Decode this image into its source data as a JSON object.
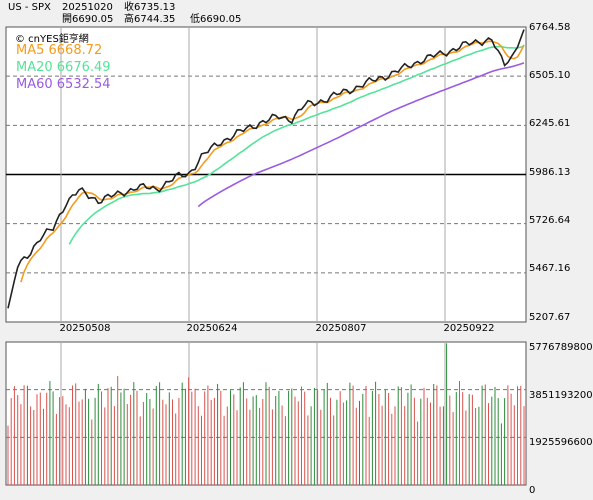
{
  "header": {
    "symbol": "US - SPX",
    "date": "20251020",
    "close": "收6735.13",
    "open": "開6690.05",
    "high": "高6744.35",
    "low": "低6690.05"
  },
  "brand": "© cnYES鉅亨網",
  "legend": [
    {
      "label": "MA5 6668.72",
      "color": "#f39c1e"
    },
    {
      "label": "MA20 6676.49",
      "color": "#55e39a"
    },
    {
      "label": "MA60 6532.54",
      "color": "#9a5be0"
    }
  ],
  "colors": {
    "price": "#222222",
    "ma5": "#f39c1e",
    "ma20": "#55e39a",
    "ma60": "#9a5be0",
    "vol_up": "#d9534f",
    "vol_down": "#2e8b3a",
    "reference": "#000000"
  },
  "chart_data": [
    {
      "type": "line",
      "x_ticks": [
        "20250508",
        "20250624",
        "20250807",
        "20250922"
      ],
      "y_ticks": [
        "6764.58",
        "6505.10",
        "6245.61",
        "5986.13",
        "5726.64",
        "5467.16",
        "5207.67"
      ],
      "ylim": [
        5207.67,
        6764.58
      ],
      "reference_line": 5986.13,
      "series": [
        {
          "name": "MA5",
          "last": 6668.72
        },
        {
          "name": "MA20",
          "last": 6676.49
        },
        {
          "name": "MA60",
          "last": 6532.54
        }
      ],
      "price_anchors": [
        [
          0,
          5280
        ],
        [
          3,
          5500
        ],
        [
          6,
          5560
        ],
        [
          10,
          5650
        ],
        [
          14,
          5700
        ],
        [
          18,
          5840
        ],
        [
          22,
          5900
        ],
        [
          28,
          5850
        ],
        [
          34,
          5880
        ],
        [
          40,
          5920
        ],
        [
          46,
          5910
        ],
        [
          52,
          5970
        ],
        [
          56,
          5990
        ],
        [
          60,
          6080
        ],
        [
          66,
          6160
        ],
        [
          72,
          6210
        ],
        [
          78,
          6260
        ],
        [
          84,
          6290
        ],
        [
          88,
          6280
        ],
        [
          92,
          6350
        ],
        [
          98,
          6380
        ],
        [
          104,
          6420
        ],
        [
          110,
          6460
        ],
        [
          116,
          6500
        ],
        [
          122,
          6540
        ],
        [
          128,
          6590
        ],
        [
          134,
          6620
        ],
        [
          140,
          6660
        ],
        [
          146,
          6690
        ],
        [
          150,
          6700
        ],
        [
          152,
          6620
        ],
        [
          154,
          6570
        ],
        [
          156,
          6600
        ],
        [
          158,
          6680
        ],
        [
          160,
          6735
        ]
      ]
    },
    {
      "type": "bar",
      "y_ticks": [
        "5776789800",
        "3851193200",
        "1925596600",
        "0"
      ],
      "ylim": [
        0,
        5776789800
      ]
    }
  ]
}
